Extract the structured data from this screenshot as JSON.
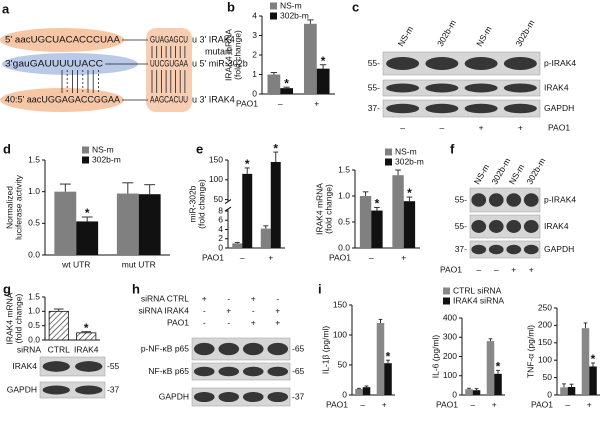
{
  "sequences": {
    "label": "a",
    "mutant_note": "mutant",
    "lines": [
      [
        "5' aacUGCUACACCCUAA",
        "GUAGAGCU",
        "u 3' IRAK4"
      ],
      [
        "3'gauGAUUUUUACC",
        "UUCGUGAA",
        "u 5' miR-302b"
      ],
      [
        "40:5' aacUGGAGACCGGAA",
        "AAGCACUU",
        "u 3' IRAK4"
      ]
    ]
  },
  "chart_data": [
    {
      "type": "bar",
      "label": "b",
      "ylabel": [
        "IRAK4 mRNA",
        "(fold change)"
      ],
      "xlabel": "PAO1",
      "categories": [
        "–",
        "+"
      ],
      "ylim": [
        0,
        4
      ],
      "yticks": [
        0,
        1,
        2,
        3,
        4
      ],
      "series": [
        {
          "name": "NS-m",
          "color": "#808080",
          "values": [
            1.0,
            3.6
          ],
          "errors": [
            0.1,
            0.2
          ]
        },
        {
          "name": "302b-m",
          "color": "#111111",
          "values": [
            0.3,
            1.3
          ],
          "errors": [
            0.05,
            0.2
          ],
          "stars": [
            "*",
            "*"
          ]
        }
      ]
    },
    {
      "type": "bar",
      "label": "d",
      "ylabel": [
        "Normalized",
        "luciferase activity"
      ],
      "categories": [
        "wt UTR",
        "mut UTR"
      ],
      "ylim": [
        0,
        1.5
      ],
      "yticks": [
        {
          "value": 0,
          "label": "0.0"
        },
        0.5,
        {
          "value": 1,
          "label": "1.0"
        },
        1.5
      ],
      "series": [
        {
          "name": "NS-m",
          "color": "#808080",
          "values": [
            1.0,
            0.97
          ],
          "errors": [
            0.12,
            0.17
          ]
        },
        {
          "name": "302b-m",
          "color": "#111111",
          "values": [
            0.53,
            0.96
          ],
          "errors": [
            0.07,
            0.15
          ],
          "stars": [
            "*",
            null
          ]
        }
      ]
    },
    {
      "type": "bar",
      "label": "e",
      "ylabel": [
        "miR-302b",
        "(fold change)"
      ],
      "xlabel": "PAO1",
      "categories": [
        "–",
        "+"
      ],
      "ylim": [
        0,
        150
      ],
      "axis_break": [
        8,
        50
      ],
      "yticks": [
        0,
        2,
        4,
        6,
        8,
        50,
        100,
        150
      ],
      "series": [
        {
          "color": "#808080",
          "values": [
            1,
            4.2
          ],
          "errors": [
            0.2,
            0.6
          ]
        },
        {
          "color": "#111111",
          "values": [
            115,
            145
          ],
          "errors": [
            15,
            25
          ],
          "stars": [
            "*",
            "*"
          ]
        }
      ]
    },
    {
      "type": "bar",
      "ylabel": [
        "IRAK4 mRNA",
        "(fold change)"
      ],
      "xlabel": "PAO1",
      "categories": [
        "–",
        "+"
      ],
      "ylim": [
        0,
        1.5
      ],
      "yticks": [
        {
          "value": 0,
          "label": "0.0"
        },
        0.5,
        {
          "value": 1,
          "label": "1.0"
        },
        1.5
      ],
      "series": [
        {
          "name": "NS-m",
          "color": "#808080",
          "values": [
            1.0,
            1.4
          ],
          "errors": [
            0.08,
            0.1
          ]
        },
        {
          "name": "302b-m",
          "color": "#111111",
          "values": [
            0.72,
            0.9
          ],
          "errors": [
            0.06,
            0.08
          ],
          "stars": [
            "*",
            "*"
          ]
        }
      ]
    },
    {
      "type": "bar",
      "label": "g",
      "ylabel": [
        "IRAK4 mRNA",
        "(fold change)"
      ],
      "xlabel": "siRNA",
      "categories": [
        "CTRL",
        "IRAK4"
      ],
      "ylim": [
        0,
        1.5
      ],
      "pattern": "hatch",
      "yticks": [
        {
          "value": 0,
          "label": "0.0"
        },
        0.5,
        {
          "value": 1,
          "label": "1.0"
        },
        1.5
      ],
      "series": [
        {
          "color": "#ffffff",
          "values": [
            1.0,
            0.25
          ],
          "errors": [
            0.08,
            0.04
          ],
          "stars": [
            null,
            "*"
          ]
        }
      ]
    },
    {
      "type": "bar",
      "label": "i",
      "ylabel": [
        "IL-1β (pg/ml)"
      ],
      "xlabel": "PAO1",
      "categories": [
        "–",
        "+"
      ],
      "ylim": [
        0,
        150
      ],
      "yticks": [
        0,
        50,
        100,
        150
      ],
      "series": [
        {
          "color": "#888888",
          "values": [
            10,
            120
          ],
          "errors": [
            1,
            6
          ]
        },
        {
          "color": "#111111",
          "values": [
            13,
            53
          ],
          "errors": [
            2,
            5
          ],
          "stars": [
            null,
            "*"
          ]
        }
      ]
    },
    {
      "type": "bar",
      "ylabel": [
        "IL-6 (pg/ml)"
      ],
      "xlabel": "PAO1",
      "categories": [
        "–",
        "+"
      ],
      "ylim": [
        0,
        400
      ],
      "yticks": [
        0,
        100,
        200,
        300,
        400
      ],
      "series": [
        {
          "name": "CTRL  siRNA",
          "color": "#888888",
          "values": [
            30,
            280
          ],
          "errors": [
            5,
            12
          ]
        },
        {
          "name": "IRAK4 siRNA",
          "color": "#111111",
          "values": [
            25,
            110
          ],
          "errors": [
            8,
            18
          ],
          "stars": [
            null,
            "*"
          ]
        }
      ]
    },
    {
      "type": "bar",
      "ylabel": [
        "TNF-α (pg/ml)"
      ],
      "xlabel": "PAO1",
      "categories": [
        "–",
        "+"
      ],
      "ylim": [
        0,
        250
      ],
      "yticks": [
        0,
        50,
        100,
        150,
        200,
        250
      ],
      "series": [
        {
          "color": "#888888",
          "values": [
            22,
            192
          ],
          "errors": [
            10,
            15
          ]
        },
        {
          "color": "#111111",
          "values": [
            23,
            82
          ],
          "errors": [
            8,
            10
          ],
          "stars": [
            null,
            "*"
          ]
        }
      ]
    }
  ],
  "blots": [
    {
      "label": "c",
      "lanes": [
        "NS-m",
        "302b-m",
        "NS-m",
        "302b-m"
      ],
      "rows": [
        {
          "name": "p-IRAK4",
          "marker": "55-"
        },
        {
          "name": "IRAK4",
          "marker": "55-"
        },
        {
          "name": "GAPDH",
          "marker": "37-"
        }
      ],
      "treatments": [
        {
          "name": "PAO1",
          "signs": [
            "–",
            "–",
            "+",
            "+"
          ]
        }
      ]
    },
    {
      "label": "f",
      "lanes": [
        "NS-m",
        "302b-m",
        "NS-m",
        "302b-m"
      ],
      "rows": [
        {
          "name": "p-IRAK4",
          "marker": "55-"
        },
        {
          "name": "IRAK4",
          "marker": "55-"
        },
        {
          "name": "GAPDH",
          "marker": "37-"
        }
      ],
      "treatments": [
        {
          "name": "PAO1",
          "signs": [
            "–",
            "–",
            "+",
            "+"
          ]
        }
      ]
    },
    {
      "label": "h",
      "rows": [
        {
          "name": "p-NF-κB p65",
          "marker": "-65"
        },
        {
          "name": "NF-κB p65",
          "marker": "-65"
        },
        {
          "name": "GAPDH",
          "marker": "-37"
        }
      ],
      "treatments": [
        {
          "name": "siRNA CTRL",
          "signs": [
            "+",
            "-",
            "+",
            "-"
          ]
        },
        {
          "name": "siRNA IRAK4",
          "signs": [
            "-",
            "+",
            "-",
            "+"
          ]
        },
        {
          "name": "PAO1",
          "signs": [
            "-",
            "-",
            "+",
            "+"
          ]
        }
      ]
    },
    {
      "rows": [
        {
          "name": "IRAK4",
          "marker": "-55"
        },
        {
          "name": "GAPDH",
          "marker": "-37"
        }
      ]
    }
  ]
}
